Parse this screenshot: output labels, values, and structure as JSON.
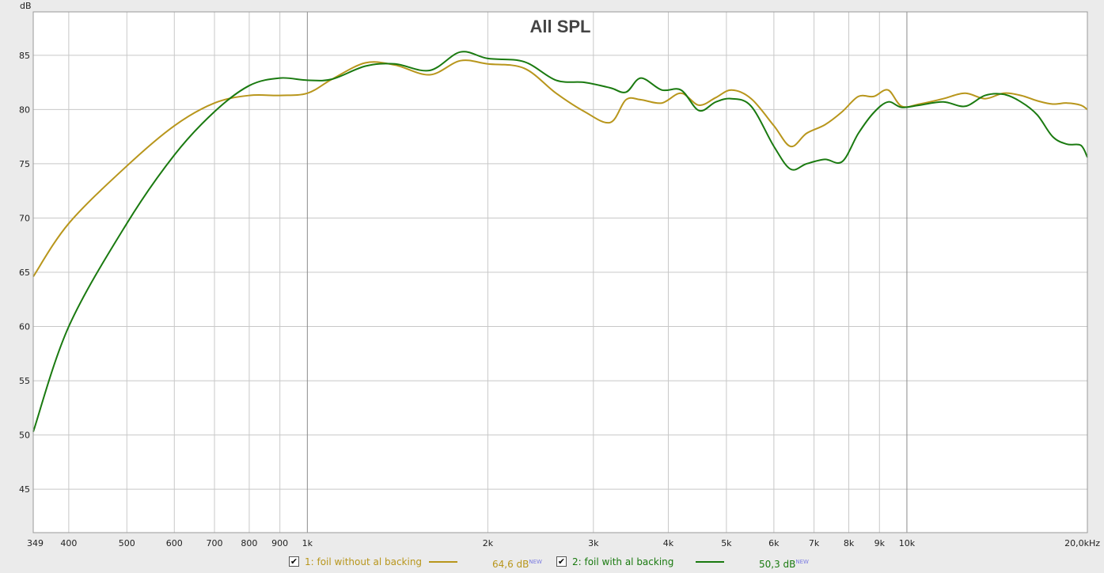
{
  "chart_data": {
    "type": "line",
    "title": "All SPL",
    "ylabel": "dB",
    "x_scale": "log",
    "xlim": [
      349,
      20000
    ],
    "ylim": [
      41,
      89
    ],
    "y_ticks": [
      45,
      50,
      55,
      60,
      65,
      70,
      75,
      80,
      85
    ],
    "x_ticks": [
      {
        "v": 349,
        "label": "349"
      },
      {
        "v": 400,
        "label": "400"
      },
      {
        "v": 500,
        "label": "500"
      },
      {
        "v": 600,
        "label": "600"
      },
      {
        "v": 700,
        "label": "700"
      },
      {
        "v": 800,
        "label": "800"
      },
      {
        "v": 900,
        "label": "900"
      },
      {
        "v": 1000,
        "label": "1k"
      },
      {
        "v": 2000,
        "label": "2k"
      },
      {
        "v": 3000,
        "label": "3k"
      },
      {
        "v": 4000,
        "label": "4k"
      },
      {
        "v": 5000,
        "label": "5k"
      },
      {
        "v": 6000,
        "label": "6k"
      },
      {
        "v": 7000,
        "label": "7k"
      },
      {
        "v": 8000,
        "label": "8k"
      },
      {
        "v": 9000,
        "label": "9k"
      },
      {
        "v": 10000,
        "label": "10k"
      },
      {
        "v": 20000,
        "label": "20,0kHz"
      }
    ],
    "grid": true,
    "series": [
      {
        "name": "1: foil without al backing",
        "color": "#b8961c",
        "x": [
          349,
          400,
          500,
          600,
          700,
          800,
          900,
          1000,
          1100,
          1250,
          1400,
          1600,
          1800,
          2000,
          2300,
          2600,
          2900,
          3200,
          3400,
          3600,
          3900,
          4200,
          4500,
          4800,
          5100,
          5500,
          6000,
          6400,
          6800,
          7300,
          7800,
          8300,
          8800,
          9300,
          9800,
          10500,
          11500,
          12500,
          13500,
          14500,
          15500,
          16500,
          17500,
          18500,
          19500,
          20000
        ],
        "values": [
          64.6,
          69.5,
          74.8,
          78.5,
          80.6,
          81.3,
          81.3,
          81.5,
          82.8,
          84.3,
          84.1,
          83.2,
          84.5,
          84.2,
          83.8,
          81.5,
          79.8,
          78.8,
          80.9,
          80.9,
          80.6,
          81.5,
          80.4,
          81.1,
          81.8,
          81.0,
          78.5,
          76.6,
          77.8,
          78.6,
          79.8,
          81.2,
          81.2,
          81.8,
          80.3,
          80.5,
          81.0,
          81.5,
          81.0,
          81.5,
          81.3,
          80.8,
          80.5,
          80.6,
          80.4,
          80.0
        ]
      },
      {
        "name": "2: foil with al backing",
        "color": "#1a7a10",
        "x": [
          349,
          400,
          500,
          600,
          700,
          800,
          900,
          1000,
          1100,
          1250,
          1400,
          1600,
          1800,
          2000,
          2300,
          2600,
          2900,
          3200,
          3400,
          3600,
          3900,
          4200,
          4500,
          4800,
          5100,
          5500,
          6000,
          6400,
          6800,
          7300,
          7800,
          8300,
          8800,
          9300,
          9800,
          10500,
          11500,
          12500,
          13500,
          14500,
          15500,
          16500,
          17500,
          18500,
          19500,
          20000
        ],
        "values": [
          50.3,
          60.0,
          69.5,
          75.8,
          79.8,
          82.2,
          82.9,
          82.7,
          82.8,
          84.0,
          84.2,
          83.6,
          85.3,
          84.7,
          84.4,
          82.7,
          82.5,
          82.0,
          81.6,
          82.9,
          81.8,
          81.8,
          79.9,
          80.7,
          81.0,
          80.3,
          76.6,
          74.5,
          75.0,
          75.4,
          75.2,
          77.8,
          79.7,
          80.7,
          80.2,
          80.4,
          80.7,
          80.3,
          81.3,
          81.4,
          80.7,
          79.5,
          77.5,
          76.8,
          76.7,
          75.6
        ]
      }
    ]
  },
  "legend": [
    {
      "label": "1: foil without al backing",
      "value": "64,6 dB",
      "badge": "NEW",
      "checked": "✔",
      "color": "#b8961c"
    },
    {
      "label": "2: foil with al backing",
      "value": "50,3 dB",
      "badge": "NEW",
      "checked": "✔",
      "color": "#1a7a10"
    }
  ]
}
